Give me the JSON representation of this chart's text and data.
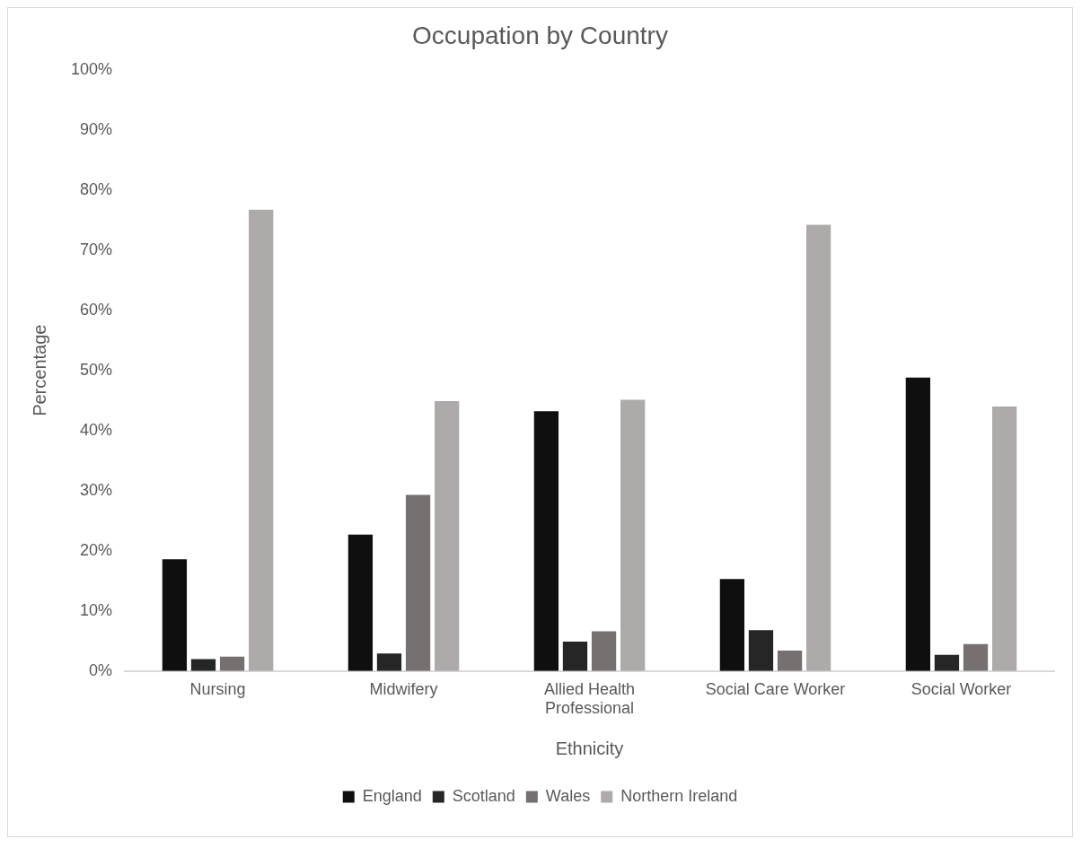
{
  "chart_data": {
    "type": "bar",
    "title": "Occupation by Country",
    "xlabel": "Ethnicity",
    "ylabel": "Percentage",
    "categories": [
      "Nursing",
      "Midwifery",
      "Allied Health Professional",
      "Social Care Worker",
      "Social Worker"
    ],
    "series": [
      {
        "name": "England",
        "color": "#0f0f0f",
        "values": [
          18.6,
          22.7,
          43.2,
          15.3,
          48.8
        ]
      },
      {
        "name": "Scotland",
        "color": "#262626",
        "values": [
          2.0,
          2.9,
          4.9,
          6.8,
          2.7
        ]
      },
      {
        "name": "Wales",
        "color": "#767170",
        "values": [
          2.4,
          29.3,
          6.6,
          3.4,
          4.5
        ]
      },
      {
        "name": "Northern Ireland",
        "color": "#aeaaaa",
        "values": [
          76.7,
          44.9,
          45.1,
          74.2,
          44.0
        ]
      }
    ],
    "ylim": [
      0,
      100
    ],
    "yticks": [
      {
        "value": 0,
        "label": "0%"
      },
      {
        "value": 10,
        "label": "10%"
      },
      {
        "value": 20,
        "label": "20%"
      },
      {
        "value": 30,
        "label": "30%"
      },
      {
        "value": 40,
        "label": "40%"
      },
      {
        "value": 50,
        "label": "50%"
      },
      {
        "value": 60,
        "label": "60%"
      },
      {
        "value": 70,
        "label": "70%"
      },
      {
        "value": 80,
        "label": "80%"
      },
      {
        "value": 90,
        "label": "90%"
      },
      {
        "value": 100,
        "label": "100%"
      }
    ],
    "grid": false,
    "legend": "bottom"
  }
}
